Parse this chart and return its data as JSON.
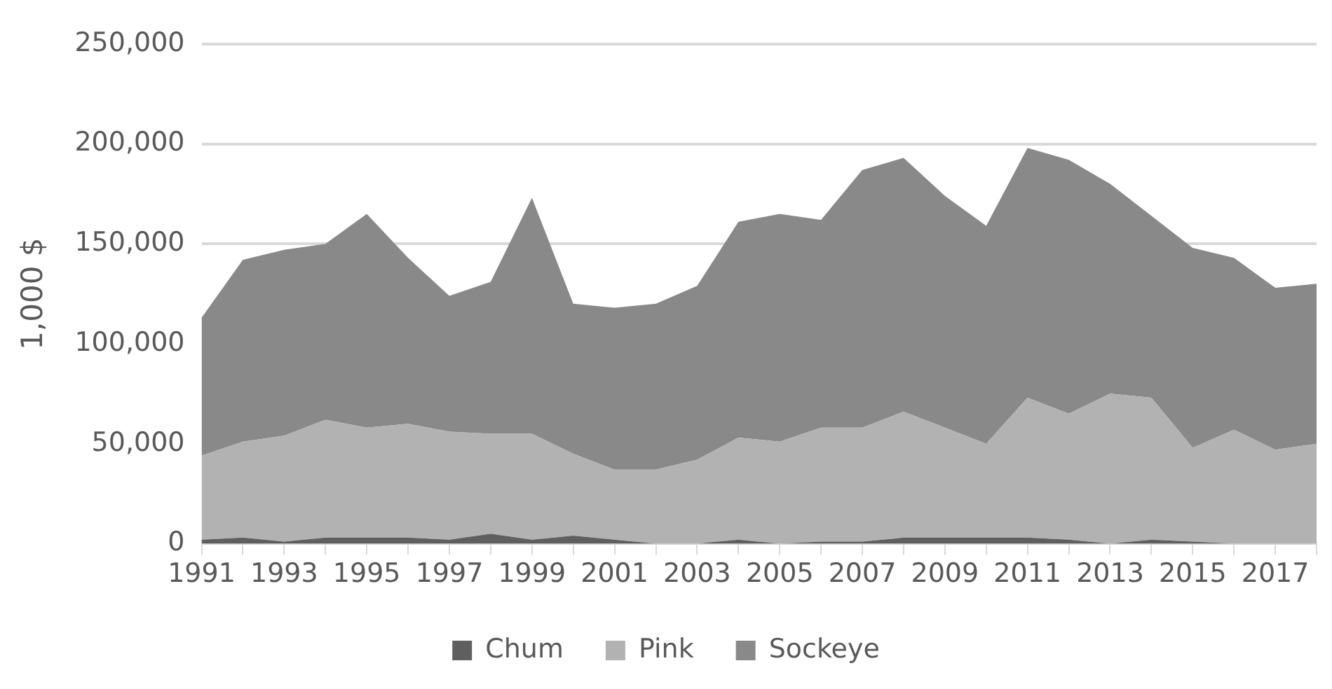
{
  "chart_data": {
    "type": "area",
    "stacked": true,
    "ylabel": "1,000 $",
    "categories": [
      "1991",
      null,
      "1993",
      null,
      "1995",
      null,
      "1997",
      null,
      "1999",
      null,
      "2001",
      null,
      "2003",
      null,
      "2005",
      null,
      "2007",
      null,
      "2009",
      null,
      "2011",
      null,
      "2013",
      null,
      "2015",
      null,
      "2017",
      null
    ],
    "series": [
      {
        "name": "Chum",
        "color": "#5f5f5f",
        "values": [
          2000,
          3000,
          1000,
          3000,
          3000,
          3000,
          2000,
          5000,
          2000,
          4000,
          2000,
          0,
          0,
          2000,
          0,
          1000,
          1000,
          3000,
          3000,
          3000,
          3000,
          2000,
          0,
          2000,
          1000,
          0,
          0,
          0
        ]
      },
      {
        "name": "Pink",
        "color": "#b2b2b2",
        "values": [
          42000,
          48000,
          53000,
          59000,
          55000,
          57000,
          54000,
          50000,
          53000,
          41000,
          35000,
          37000,
          42000,
          51000,
          51000,
          57000,
          57000,
          63000,
          55000,
          47000,
          70000,
          63000,
          75000,
          71000,
          47000,
          57000,
          47000,
          50000
        ]
      },
      {
        "name": "Sockeye",
        "color": "#898989",
        "values": [
          69000,
          91000,
          93000,
          88000,
          107000,
          83000,
          68000,
          76000,
          118000,
          75000,
          81000,
          83000,
          87000,
          108000,
          114000,
          104000,
          129000,
          127000,
          116000,
          109000,
          125000,
          127000,
          105000,
          91000,
          100000,
          86000,
          81000,
          80000
        ]
      }
    ],
    "ylim": [
      0,
      250000
    ],
    "yticks": [
      0,
      {
        "value": 50000,
        "label": "50,000"
      },
      {
        "value": 100000,
        "label": "100,000"
      },
      {
        "value": 150000,
        "label": "150,000"
      },
      {
        "value": 200000,
        "label": "200,000"
      },
      {
        "value": 250000,
        "label": "250,000"
      }
    ],
    "grid": "y",
    "legend": "bottom"
  }
}
